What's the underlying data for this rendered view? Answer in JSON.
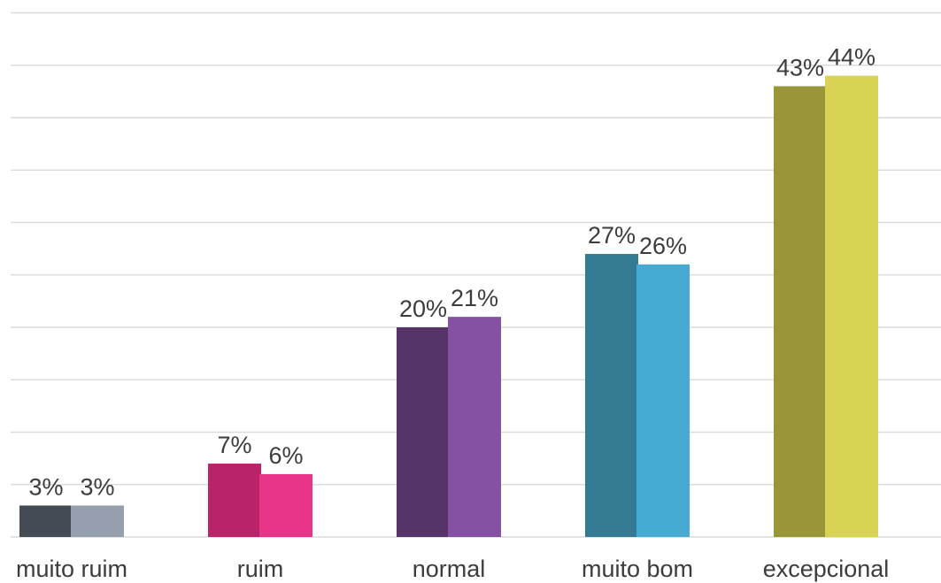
{
  "chart_data": {
    "type": "bar",
    "title": "",
    "xlabel": "",
    "ylabel": "",
    "ylim": [
      0,
      50
    ],
    "grid": true,
    "legend": "none",
    "categories": [
      "muito ruim",
      "ruim",
      "normal",
      "muito bom",
      "excepcional"
    ],
    "series": [
      {
        "values": [
          3,
          7,
          20,
          27,
          43
        ],
        "labels": [
          "3%",
          "7%",
          "20%",
          "27%",
          "43%"
        ]
      },
      {
        "values": [
          3,
          6,
          21,
          26,
          44
        ],
        "labels": [
          "3%",
          "6%",
          "21%",
          "26%",
          "44%"
        ]
      }
    ],
    "colors": [
      [
        "#454b55",
        "#969fad"
      ],
      [
        "#b8236a",
        "#e8358a"
      ],
      [
        "#563467",
        "#8551a3"
      ],
      [
        "#347a93",
        "#47aad2"
      ],
      [
        "#9b953a",
        "#d8d355"
      ]
    ],
    "gridline_color": "#dcdcdc"
  }
}
